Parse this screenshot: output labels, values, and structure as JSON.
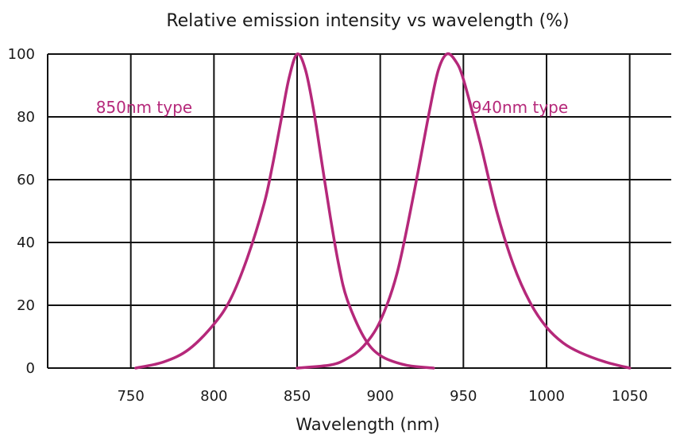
{
  "chart_data": {
    "type": "line",
    "title": "Relative emission intensity vs wavelength (%)",
    "xlabel": "Wavelength (nm)",
    "ylabel": "",
    "xlim": [
      700,
      1075
    ],
    "ylim": [
      0,
      100
    ],
    "x_ticks": [
      "750",
      "800",
      "850",
      "900",
      "950",
      "1000",
      "1050"
    ],
    "y_ticks": [
      "0",
      "20",
      "40",
      "60",
      "80",
      "100"
    ],
    "grid": true,
    "series_color": "#b5287a",
    "series": [
      {
        "name": "850nm type",
        "x": [
          753,
          770,
          785,
          800,
          810,
          820,
          830,
          835,
          840,
          845,
          850,
          855,
          860,
          865,
          870,
          875,
          880,
          890,
          900,
          915,
          932
        ],
        "y": [
          0,
          2,
          6,
          14,
          22,
          35,
          52,
          64,
          78,
          92,
          100,
          95,
          82,
          65,
          48,
          33,
          22,
          10,
          4,
          1,
          0
        ]
      },
      {
        "name": "940nm type",
        "x": [
          850,
          870,
          880,
          890,
          900,
          910,
          920,
          930,
          935,
          940,
          945,
          950,
          960,
          970,
          980,
          990,
          1000,
          1010,
          1020,
          1035,
          1050
        ],
        "y": [
          0,
          1,
          3,
          7,
          15,
          30,
          55,
          83,
          95,
          100,
          98,
          92,
          72,
          50,
          33,
          21,
          13,
          8,
          5,
          2,
          0
        ]
      }
    ]
  }
}
